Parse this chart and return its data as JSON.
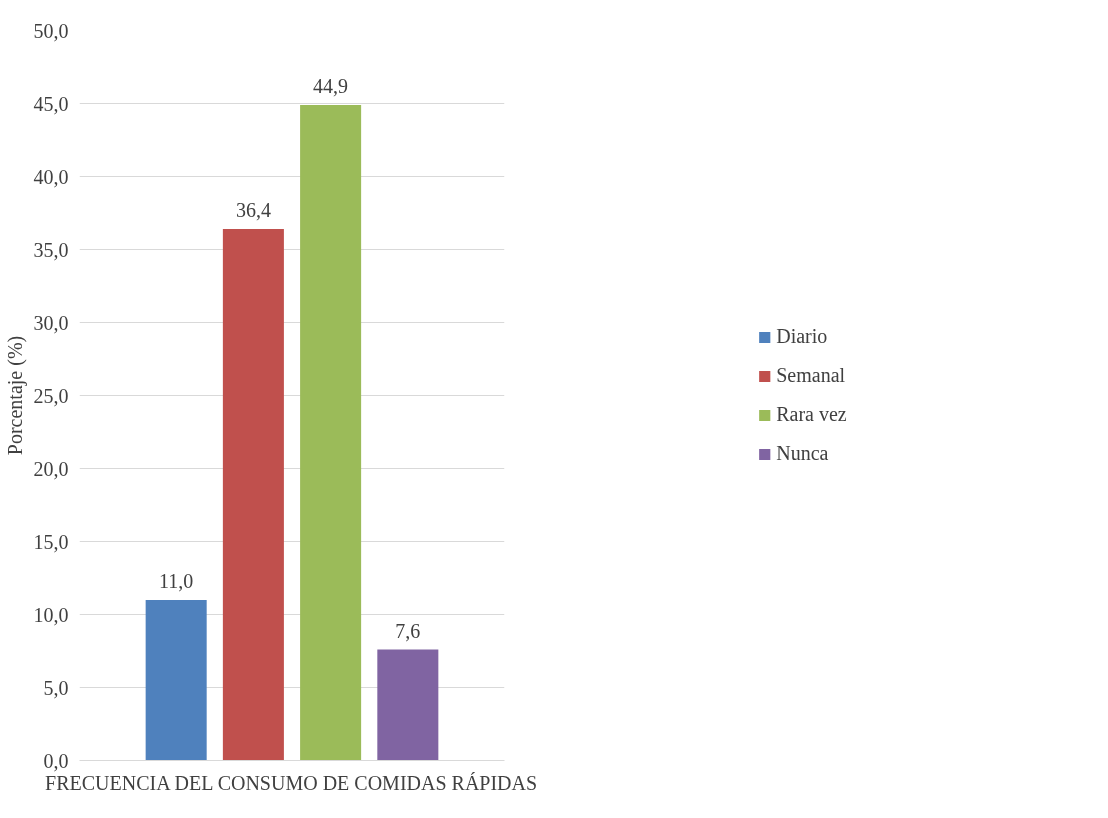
{
  "chart_data": {
    "type": "bar",
    "ylabel": "Porcentaje (%)",
    "categories": [
      "FRECUENCIA DEL CONSUMO DE COMIDAS RÁPIDAS"
    ],
    "series": [
      {
        "name": "Diario",
        "color": "#4f81bd",
        "values": [
          11.0
        ],
        "value_labels": [
          "11,0"
        ]
      },
      {
        "name": "Semanal",
        "color": "#c0504d",
        "values": [
          36.4
        ],
        "value_labels": [
          "36,4"
        ]
      },
      {
        "name": "Rara vez",
        "color": "#9bbb59",
        "values": [
          44.9
        ],
        "value_labels": [
          "44,9"
        ]
      },
      {
        "name": "Nunca",
        "color": "#8064a2",
        "values": [
          7.6
        ],
        "value_labels": [
          "7,6"
        ]
      }
    ],
    "ylim": [
      0,
      50
    ],
    "yticks": [
      {
        "value": 0,
        "label": "0,0"
      },
      {
        "value": 5,
        "label": "5,0"
      },
      {
        "value": 10,
        "label": "10,0"
      },
      {
        "value": 15,
        "label": "15,0"
      },
      {
        "value": 20,
        "label": "20,0"
      },
      {
        "value": 25,
        "label": "25,0"
      },
      {
        "value": 30,
        "label": "30,0"
      },
      {
        "value": 35,
        "label": "35,0"
      },
      {
        "value": 40,
        "label": "40,0"
      },
      {
        "value": 45,
        "label": "45,0"
      },
      {
        "value": 50,
        "label": "50,0"
      }
    ],
    "grid": "y",
    "legend": "right"
  }
}
